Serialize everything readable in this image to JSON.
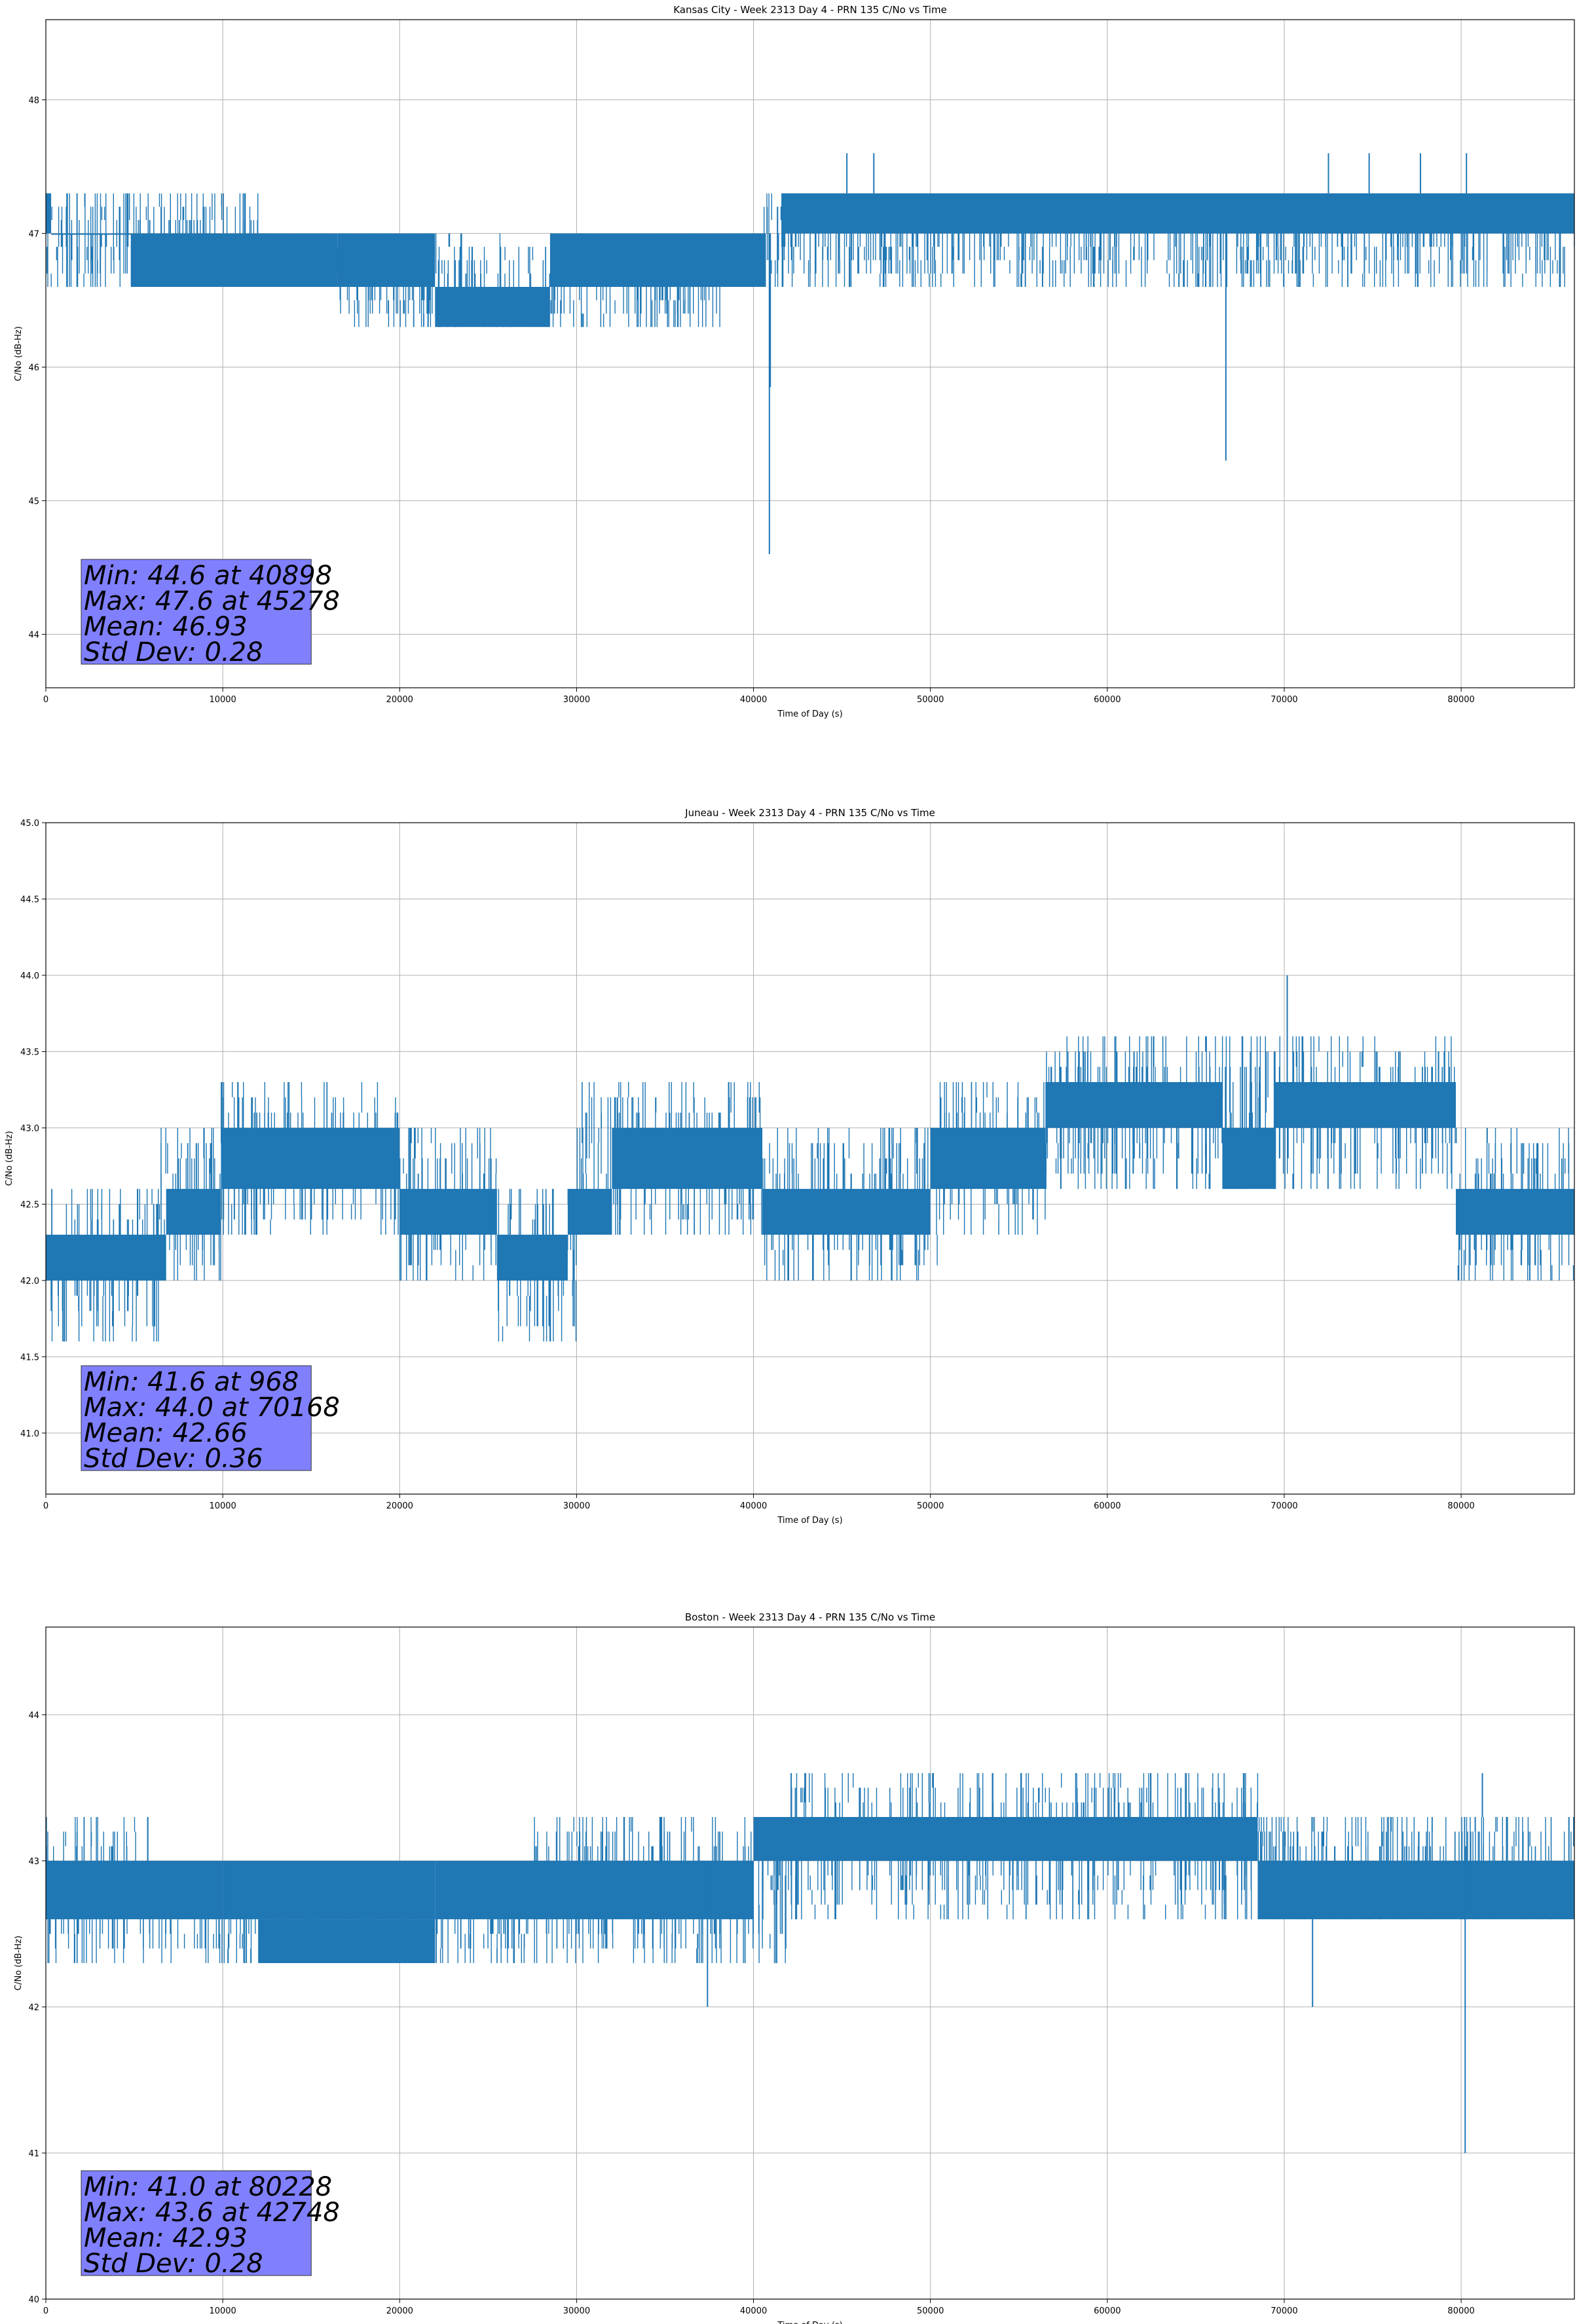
{
  "figure": {
    "colors": {
      "line": "#1f77b4",
      "grid": "#b0b0b0",
      "stats_box": "#8080ff",
      "axes": "#000000"
    }
  },
  "chart_data": [
    {
      "type": "line",
      "title": "Kansas City - Week 2313 Day 4 - PRN 135 C/No vs Time",
      "xlabel": "Time of Day (s)",
      "ylabel": "C/No (dB-Hz)",
      "xlim": [
        0,
        86400
      ],
      "ylim": [
        43.6,
        48.6
      ],
      "xticks": [
        0,
        10000,
        20000,
        30000,
        40000,
        50000,
        60000,
        70000,
        80000
      ],
      "xtick_labels": [
        "0",
        "10000",
        "20000",
        "30000",
        "40000",
        "50000",
        "60000",
        "70000",
        "80000"
      ],
      "yticks": [
        44,
        45,
        46,
        47,
        48
      ],
      "ytick_labels": [
        "44",
        "45",
        "46",
        "47",
        "48"
      ],
      "grid": true,
      "stats_box": [
        "Min: 44.6 at 40898",
        "Max: 47.6 at 45278",
        "Mean: 46.93",
        "Std Dev: 0.28"
      ],
      "segments": [
        {
          "x": [
            0,
            12000
          ],
          "lo": 46.6,
          "hi": 47.3
        },
        {
          "x": [
            12000,
            16500
          ],
          "lo": 46.6,
          "hi": 47.0
        },
        {
          "x": [
            16500,
            28500
          ],
          "lo": 46.3,
          "hi": 47.0
        },
        {
          "x": [
            28500,
            38500
          ],
          "lo": 46.3,
          "hi": 47.0
        },
        {
          "x": [
            38500,
            40500
          ],
          "lo": 46.6,
          "hi": 47.0
        },
        {
          "x": [
            40500,
            41600
          ],
          "lo": 46.6,
          "hi": 47.3
        },
        {
          "x": [
            41600,
            86400
          ],
          "lo": 46.6,
          "hi": 47.3
        }
      ],
      "dense_bands": [
        {
          "x": [
            0,
            300
          ],
          "lo": 47.0,
          "hi": 47.3
        },
        {
          "x": [
            300,
            4800
          ],
          "lo": 47.0,
          "hi": 47.0
        },
        {
          "x": [
            4800,
            16500
          ],
          "lo": 46.6,
          "hi": 47.0
        },
        {
          "x": [
            16500,
            22000
          ],
          "lo": 46.6,
          "hi": 47.0
        },
        {
          "x": [
            22000,
            28500
          ],
          "lo": 46.3,
          "hi": 46.6
        },
        {
          "x": [
            28500,
            40700
          ],
          "lo": 46.6,
          "hi": 47.0
        },
        {
          "x": [
            41600,
            86400
          ],
          "lo": 47.0,
          "hi": 47.3
        }
      ],
      "spikes": [
        {
          "x": 40898,
          "lo": 44.6,
          "hi": 47.0
        },
        {
          "x": 40950,
          "lo": 45.85,
          "hi": 47.0
        },
        {
          "x": 66700,
          "lo": 45.3,
          "hi": 47.0
        },
        {
          "x": 45278,
          "lo": 47.3,
          "hi": 47.6
        },
        {
          "x": 46800,
          "lo": 47.3,
          "hi": 47.6
        },
        {
          "x": 72500,
          "lo": 47.3,
          "hi": 47.6
        },
        {
          "x": 74800,
          "lo": 47.3,
          "hi": 47.6
        },
        {
          "x": 77700,
          "lo": 47.3,
          "hi": 47.6
        },
        {
          "x": 80300,
          "lo": 47.3,
          "hi": 47.6
        }
      ]
    },
    {
      "type": "line",
      "title": "Juneau - Week 2313 Day 4 - PRN 135 C/No vs Time",
      "xlabel": "Time of Day (s)",
      "ylabel": "C/No (dB-Hz)",
      "xlim": [
        0,
        86400
      ],
      "ylim": [
        40.6,
        45.0
      ],
      "xticks": [
        0,
        10000,
        20000,
        30000,
        40000,
        50000,
        60000,
        70000,
        80000
      ],
      "xtick_labels": [
        "0",
        "10000",
        "20000",
        "30000",
        "40000",
        "50000",
        "60000",
        "70000",
        "80000"
      ],
      "yticks": [
        41.0,
        41.5,
        42.0,
        42.5,
        43.0,
        43.5,
        44.0,
        44.5,
        45.0
      ],
      "ytick_labels": [
        "41.0",
        "41.5",
        "42.0",
        "42.5",
        "43.0",
        "43.5",
        "44.0",
        "44.5",
        "45.0"
      ],
      "grid": true,
      "stats_box": [
        "Min: 41.6 at 968",
        "Max: 44.0 at 70168",
        "Mean: 42.66",
        "Std Dev: 0.36"
      ],
      "segments": [
        {
          "x": [
            0,
            6500
          ],
          "lo": 41.6,
          "hi": 42.6
        },
        {
          "x": [
            6500,
            9900
          ],
          "lo": 42.0,
          "hi": 43.0
        },
        {
          "x": [
            9900,
            20000
          ],
          "lo": 42.3,
          "hi": 43.3
        },
        {
          "x": [
            20000,
            25500
          ],
          "lo": 42.0,
          "hi": 43.0
        },
        {
          "x": [
            25500,
            30000
          ],
          "lo": 41.6,
          "hi": 42.6
        },
        {
          "x": [
            30000,
            40500
          ],
          "lo": 42.3,
          "hi": 43.3
        },
        {
          "x": [
            40500,
            50500
          ],
          "lo": 42.0,
          "hi": 43.0
        },
        {
          "x": [
            50500,
            56500
          ],
          "lo": 42.3,
          "hi": 43.3
        },
        {
          "x": [
            56500,
            79700
          ],
          "lo": 42.6,
          "hi": 43.6
        },
        {
          "x": [
            79700,
            86400
          ],
          "lo": 42.0,
          "hi": 43.0
        }
      ],
      "dense_bands": [
        {
          "x": [
            0,
            6800
          ],
          "lo": 42.0,
          "hi": 42.3
        },
        {
          "x": [
            6800,
            9900
          ],
          "lo": 42.3,
          "hi": 42.6
        },
        {
          "x": [
            9900,
            20000
          ],
          "lo": 42.6,
          "hi": 43.0
        },
        {
          "x": [
            20000,
            25500
          ],
          "lo": 42.3,
          "hi": 42.6
        },
        {
          "x": [
            25500,
            29500
          ],
          "lo": 42.0,
          "hi": 42.3
        },
        {
          "x": [
            29500,
            32000
          ],
          "lo": 42.3,
          "hi": 42.6
        },
        {
          "x": [
            32000,
            40500
          ],
          "lo": 42.6,
          "hi": 43.0
        },
        {
          "x": [
            40500,
            50000
          ],
          "lo": 42.3,
          "hi": 42.6
        },
        {
          "x": [
            50000,
            56500
          ],
          "lo": 42.6,
          "hi": 43.0
        },
        {
          "x": [
            56500,
            66500
          ],
          "lo": 43.0,
          "hi": 43.3
        },
        {
          "x": [
            66500,
            69500
          ],
          "lo": 42.6,
          "hi": 43.0
        },
        {
          "x": [
            69500,
            79700
          ],
          "lo": 43.0,
          "hi": 43.3
        },
        {
          "x": [
            79700,
            86400
          ],
          "lo": 42.3,
          "hi": 42.6
        }
      ],
      "spikes": [
        {
          "x": 70168,
          "lo": 43.3,
          "hi": 44.0
        },
        {
          "x": 968,
          "lo": 41.6,
          "hi": 42.0
        }
      ]
    },
    {
      "type": "line",
      "title": "Boston - Week 2313 Day 4 - PRN 135 C/No vs Time",
      "xlabel": "Time of Day (s)",
      "ylabel": "C/No (dB-Hz)",
      "xlim": [
        0,
        86400
      ],
      "ylim": [
        40.0,
        44.6
      ],
      "xticks": [
        0,
        10000,
        20000,
        30000,
        40000,
        50000,
        60000,
        70000,
        80000
      ],
      "xtick_labels": [
        "0",
        "10000",
        "20000",
        "30000",
        "40000",
        "50000",
        "60000",
        "70000",
        "80000"
      ],
      "yticks": [
        40,
        41,
        42,
        43,
        44
      ],
      "ytick_labels": [
        "40",
        "41",
        "42",
        "43",
        "44"
      ],
      "grid": true,
      "stats_box": [
        "Min: 41.0 at 80228",
        "Max: 43.6 at 42748",
        "Mean: 42.93",
        "Std Dev: 0.28"
      ],
      "segments": [
        {
          "x": [
            0,
            5800
          ],
          "lo": 42.3,
          "hi": 43.3
        },
        {
          "x": [
            5800,
            27500
          ],
          "lo": 42.3,
          "hi": 43.0
        },
        {
          "x": [
            27500,
            42000
          ],
          "lo": 42.3,
          "hi": 43.3
        },
        {
          "x": [
            42000,
            68500
          ],
          "lo": 42.6,
          "hi": 43.6
        },
        {
          "x": [
            68500,
            86400
          ],
          "lo": 42.6,
          "hi": 43.3
        }
      ],
      "dense_bands": [
        {
          "x": [
            0,
            10000
          ],
          "lo": 42.6,
          "hi": 43.0
        },
        {
          "x": [
            10000,
            22000
          ],
          "lo": 42.6,
          "hi": 43.0
        },
        {
          "x": [
            12000,
            22000
          ],
          "lo": 42.3,
          "hi": 42.6
        },
        {
          "x": [
            22000,
            40000
          ],
          "lo": 42.6,
          "hi": 43.0
        },
        {
          "x": [
            40000,
            68500
          ],
          "lo": 43.0,
          "hi": 43.3
        },
        {
          "x": [
            68500,
            86400
          ],
          "lo": 42.6,
          "hi": 43.0
        }
      ],
      "spikes": [
        {
          "x": 37400,
          "lo": 42.0,
          "hi": 43.0
        },
        {
          "x": 71600,
          "lo": 42.0,
          "hi": 42.6
        },
        {
          "x": 80228,
          "lo": 41.0,
          "hi": 43.0
        },
        {
          "x": 81200,
          "lo": 43.3,
          "hi": 43.6
        }
      ]
    }
  ]
}
